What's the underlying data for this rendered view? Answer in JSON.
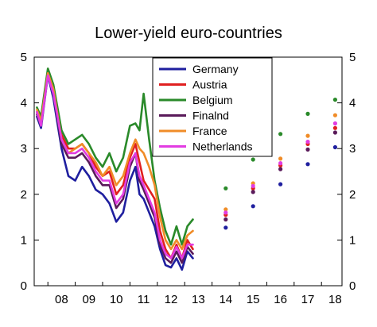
{
  "chart_data": {
    "type": "line",
    "title": "Lower-yield euro-countries",
    "xlabel": "",
    "ylabel": "",
    "ylim": [
      0,
      5
    ],
    "yticks": [
      0,
      1,
      2,
      3,
      4,
      5
    ],
    "xlim": [
      2007.5,
      2018.75
    ],
    "xtick_labels": [
      "08",
      "09",
      "10",
      "11",
      "12",
      "13",
      "14",
      "15",
      "16",
      "17",
      "18"
    ],
    "xtick_years": [
      2008,
      2009,
      2010,
      2011,
      2012,
      2013,
      2014,
      2015,
      2016,
      2017,
      2018
    ],
    "grid": false,
    "legend_position": "top-center",
    "series": [
      {
        "name": "Germany",
        "color": "#1f1f9f",
        "x": [
          2007.6,
          2007.75,
          2008.0,
          2008.2,
          2008.5,
          2008.75,
          2009.0,
          2009.25,
          2009.5,
          2009.75,
          2010.0,
          2010.25,
          2010.5,
          2010.75,
          2011.0,
          2011.2,
          2011.35,
          2011.5,
          2011.7,
          2011.9,
          2012.1,
          2012.3,
          2012.5,
          2012.7,
          2012.9,
          2013.1,
          2013.3
        ],
        "y": [
          3.7,
          3.45,
          4.6,
          4.1,
          3.0,
          2.4,
          2.3,
          2.6,
          2.4,
          2.1,
          2.0,
          1.8,
          1.4,
          1.6,
          2.3,
          2.6,
          2.0,
          1.9,
          1.6,
          1.3,
          0.8,
          0.45,
          0.4,
          0.6,
          0.35,
          0.75,
          0.6
        ],
        "forecast": [
          [
            2014,
            1.27
          ],
          [
            2015,
            1.74
          ],
          [
            2016,
            2.22
          ],
          [
            2017,
            2.66
          ],
          [
            2018,
            3.03
          ]
        ]
      },
      {
        "name": "Austria",
        "color": "#e02020",
        "x": [
          2007.6,
          2007.75,
          2008.0,
          2008.2,
          2008.5,
          2008.75,
          2009.0,
          2009.25,
          2009.5,
          2009.75,
          2010.0,
          2010.25,
          2010.5,
          2010.75,
          2011.0,
          2011.2,
          2011.35,
          2011.5,
          2011.7,
          2011.9,
          2012.1,
          2012.3,
          2012.5,
          2012.7,
          2012.9,
          2013.1,
          2013.3
        ],
        "y": [
          3.8,
          3.6,
          4.7,
          4.3,
          3.3,
          3.0,
          3.0,
          3.1,
          2.9,
          2.6,
          2.4,
          2.5,
          2.0,
          2.2,
          2.8,
          3.1,
          2.7,
          2.3,
          2.1,
          1.9,
          1.2,
          0.8,
          0.6,
          0.9,
          0.6,
          1.0,
          0.8
        ],
        "forecast": [
          [
            2014,
            1.55
          ],
          [
            2015,
            2.13
          ],
          [
            2016,
            2.63
          ],
          [
            2017,
            3.1
          ],
          [
            2018,
            3.45
          ]
        ]
      },
      {
        "name": "Belgium",
        "color": "#2a8a2a",
        "x": [
          2007.6,
          2007.75,
          2008.0,
          2008.2,
          2008.5,
          2008.75,
          2009.0,
          2009.25,
          2009.5,
          2009.75,
          2010.0,
          2010.25,
          2010.5,
          2010.75,
          2011.0,
          2011.2,
          2011.35,
          2011.5,
          2011.7,
          2011.9,
          2012.1,
          2012.3,
          2012.5,
          2012.7,
          2012.9,
          2013.1,
          2013.3
        ],
        "y": [
          3.9,
          3.7,
          4.75,
          4.4,
          3.4,
          3.1,
          3.2,
          3.3,
          3.1,
          2.8,
          2.6,
          2.9,
          2.5,
          2.8,
          3.5,
          3.55,
          3.4,
          4.2,
          3.2,
          2.3,
          1.7,
          1.2,
          0.9,
          1.3,
          0.9,
          1.3,
          1.45
        ],
        "forecast": [
          [
            2014,
            2.13
          ],
          [
            2015,
            2.76
          ],
          [
            2016,
            3.32
          ],
          [
            2017,
            3.76
          ],
          [
            2018,
            4.07
          ]
        ]
      },
      {
        "name": "Finalnd",
        "color": "#5a1a5a",
        "x": [
          2007.6,
          2007.75,
          2008.0,
          2008.2,
          2008.5,
          2008.75,
          2009.0,
          2009.25,
          2009.5,
          2009.75,
          2010.0,
          2010.25,
          2010.5,
          2010.75,
          2011.0,
          2011.2,
          2011.35,
          2011.5,
          2011.7,
          2011.9,
          2012.1,
          2012.3,
          2012.5,
          2012.7,
          2012.9,
          2013.1,
          2013.3
        ],
        "y": [
          3.75,
          3.5,
          4.65,
          4.2,
          3.1,
          2.8,
          2.8,
          2.9,
          2.7,
          2.4,
          2.2,
          2.2,
          1.7,
          1.9,
          2.6,
          2.9,
          2.3,
          2.1,
          1.8,
          1.5,
          0.9,
          0.6,
          0.5,
          0.75,
          0.5,
          0.85,
          0.7
        ],
        "forecast": [
          [
            2014,
            1.45
          ],
          [
            2015,
            2.05
          ],
          [
            2016,
            2.55
          ],
          [
            2017,
            2.98
          ],
          [
            2018,
            3.35
          ]
        ]
      },
      {
        "name": "France",
        "color": "#f08c28",
        "x": [
          2007.6,
          2007.75,
          2008.0,
          2008.2,
          2008.5,
          2008.75,
          2009.0,
          2009.25,
          2009.5,
          2009.75,
          2010.0,
          2010.25,
          2010.5,
          2010.75,
          2011.0,
          2011.2,
          2011.35,
          2011.5,
          2011.7,
          2011.9,
          2012.1,
          2012.3,
          2012.5,
          2012.7,
          2012.9,
          2013.1,
          2013.3
        ],
        "y": [
          3.85,
          3.6,
          4.65,
          4.3,
          3.2,
          2.9,
          3.0,
          3.1,
          2.9,
          2.7,
          2.4,
          2.6,
          2.2,
          2.4,
          2.9,
          3.2,
          3.0,
          2.9,
          2.6,
          2.2,
          1.5,
          1.0,
          0.8,
          1.0,
          0.8,
          1.1,
          1.2
        ],
        "forecast": [
          [
            2014,
            1.67
          ],
          [
            2015,
            2.24
          ],
          [
            2016,
            2.78
          ],
          [
            2017,
            3.28
          ],
          [
            2018,
            3.73
          ]
        ]
      },
      {
        "name": "Netherlands",
        "color": "#e23ce2",
        "x": [
          2007.6,
          2007.75,
          2008.0,
          2008.2,
          2008.5,
          2008.75,
          2009.0,
          2009.25,
          2009.5,
          2009.75,
          2010.0,
          2010.25,
          2010.5,
          2010.75,
          2011.0,
          2011.2,
          2011.35,
          2011.5,
          2011.7,
          2011.9,
          2012.1,
          2012.3,
          2012.5,
          2012.7,
          2012.9,
          2013.1,
          2013.3
        ],
        "y": [
          3.8,
          3.5,
          4.6,
          4.2,
          3.2,
          2.9,
          2.9,
          3.0,
          2.8,
          2.5,
          2.3,
          2.3,
          1.8,
          2.0,
          2.7,
          2.9,
          2.4,
          2.2,
          1.9,
          1.6,
          1.0,
          0.7,
          0.6,
          0.85,
          0.6,
          0.9,
          0.9
        ],
        "forecast": [
          [
            2014,
            1.6
          ],
          [
            2015,
            2.18
          ],
          [
            2016,
            2.68
          ],
          [
            2017,
            3.15
          ],
          [
            2018,
            3.55
          ]
        ]
      }
    ]
  }
}
